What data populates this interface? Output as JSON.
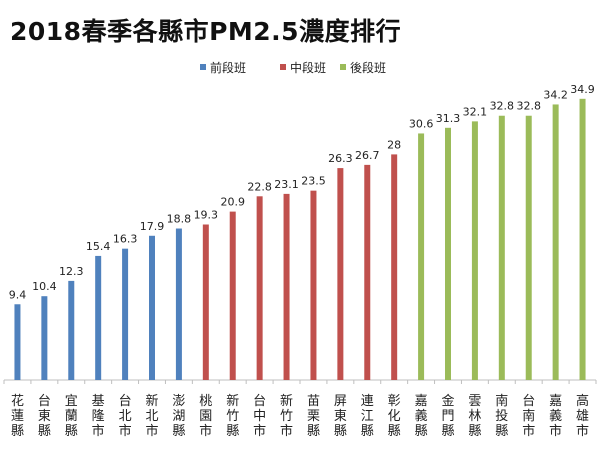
{
  "chart_data": {
    "type": "bar",
    "title": "2018春季各縣市PM2.5濃度排行",
    "categories": [
      "花蓮縣",
      "台東縣",
      "宜蘭縣",
      "基隆市",
      "台北市",
      "新北市",
      "澎湖縣",
      "桃園市",
      "新竹縣",
      "台中市",
      "新竹市",
      "苗栗縣",
      "屏東縣",
      "連江縣",
      "彰化縣",
      "嘉義縣",
      "金門縣",
      "雲林縣",
      "南投縣",
      "台南市",
      "嘉義市",
      "高雄市"
    ],
    "values": [
      9.4,
      10.4,
      12.3,
      15.4,
      16.3,
      17.9,
      18.8,
      19.3,
      20.9,
      22.8,
      23.1,
      23.5,
      26.3,
      26.7,
      28,
      30.6,
      31.3,
      32.1,
      32.8,
      32.8,
      34.2,
      34.9
    ],
    "value_labels": [
      "9.4",
      "10.4",
      "12.3",
      "15.4",
      "16.3",
      "17.9",
      "18.8",
      "19.3",
      "20.9",
      "22.8",
      "23.1",
      "23.5",
      "26.3",
      "26.7",
      "28",
      "30.6",
      "31.3",
      "32.1",
      "32.8",
      "32.8",
      "34.2",
      "34.9"
    ],
    "groups": [
      "前段班",
      "前段班",
      "前段班",
      "前段班",
      "前段班",
      "前段班",
      "前段班",
      "中段班",
      "中段班",
      "中段班",
      "中段班",
      "中段班",
      "中段班",
      "中段班",
      "中段班",
      "後段班",
      "後段班",
      "後段班",
      "後段班",
      "後段班",
      "後段班",
      "後段班"
    ],
    "legend": [
      {
        "name": "前段班",
        "color": "#4f81bd"
      },
      {
        "name": "中段班",
        "color": "#c0504d"
      },
      {
        "name": "後段班",
        "color": "#9bbb59"
      }
    ],
    "legend_position": "top",
    "xlabel": "",
    "ylabel": "",
    "ylim": [
      0,
      35
    ],
    "grid": false,
    "axis_color": "#bfbfbf"
  }
}
